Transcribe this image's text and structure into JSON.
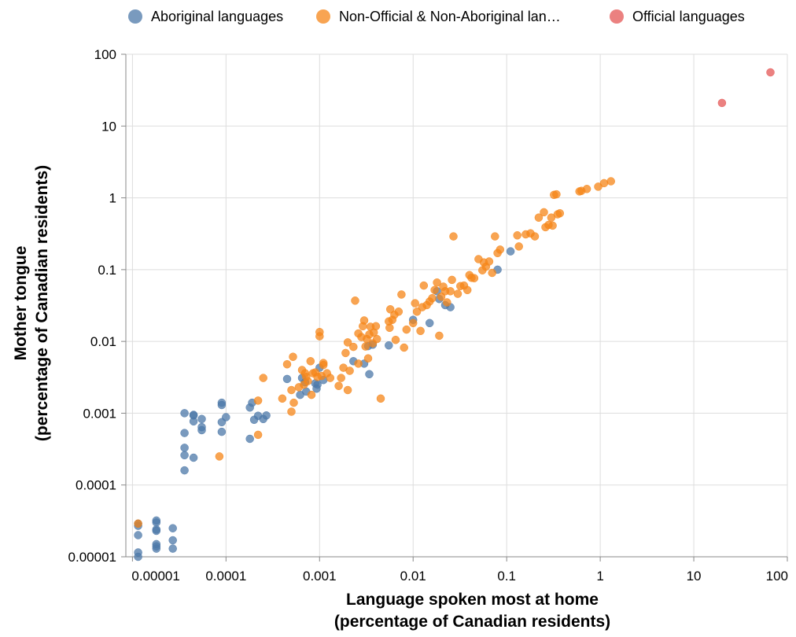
{
  "chart_data": {
    "type": "scatter",
    "xlabel": [
      "Language spoken most at home",
      "(percentage of Canadian residents)"
    ],
    "ylabel": [
      "Mother tongue",
      "(percentage of Canadian residents)"
    ],
    "xscale": "log",
    "yscale": "log",
    "xlim": [
      8.5e-06,
      100
    ],
    "ylim": [
      1e-05,
      100
    ],
    "grid": true,
    "legend_position": "top",
    "x_ticks": [
      {
        "value": 1e-05,
        "label": "0.00001"
      },
      {
        "value": 0.0001,
        "label": "0.0001"
      },
      {
        "value": 0.001,
        "label": "0.001"
      },
      {
        "value": 0.01,
        "label": "0.01"
      },
      {
        "value": 0.1,
        "label": "0.1"
      },
      {
        "value": 1,
        "label": "1"
      },
      {
        "value": 10,
        "label": "10"
      },
      {
        "value": 100,
        "label": "100"
      }
    ],
    "y_ticks": [
      {
        "value": 1e-05,
        "label": "0.00001"
      },
      {
        "value": 0.0001,
        "label": "0.0001"
      },
      {
        "value": 0.001,
        "label": "0.001"
      },
      {
        "value": 0.01,
        "label": "0.01"
      },
      {
        "value": 0.1,
        "label": "0.1"
      },
      {
        "value": 1,
        "label": "1"
      },
      {
        "value": 10,
        "label": "10"
      },
      {
        "value": 100,
        "label": "100"
      }
    ],
    "series": [
      {
        "name": "Aboriginal languages",
        "color": "#4c78a8",
        "points": [
          [
            1.15e-05,
            2.9e-05
          ],
          [
            1.15e-05,
            2.7e-05
          ],
          [
            1.15e-05,
            2e-05
          ],
          [
            1.15e-05,
            1.15e-05
          ],
          [
            1.15e-05,
            1e-05
          ],
          [
            1.8e-05,
            3.2e-05
          ],
          [
            1.8e-05,
            3e-05
          ],
          [
            1.8e-05,
            2.4e-05
          ],
          [
            1.8e-05,
            2.3e-05
          ],
          [
            1.8e-05,
            1.5e-05
          ],
          [
            1.8e-05,
            1.4e-05
          ],
          [
            1.8e-05,
            1.3e-05
          ],
          [
            2.7e-05,
            2.5e-05
          ],
          [
            2.7e-05,
            1.7e-05
          ],
          [
            2.7e-05,
            1.3e-05
          ],
          [
            3.6e-05,
            0.001
          ],
          [
            3.6e-05,
            0.00053
          ],
          [
            3.6e-05,
            0.00033
          ],
          [
            3.6e-05,
            0.00026
          ],
          [
            3.6e-05,
            0.00016
          ],
          [
            4.5e-05,
            0.00095
          ],
          [
            4.5e-05,
            0.00093
          ],
          [
            4.5e-05,
            0.00077
          ],
          [
            4.5e-05,
            0.00024
          ],
          [
            5.5e-05,
            0.00083
          ],
          [
            5.5e-05,
            0.00064
          ],
          [
            5.5e-05,
            0.00058
          ],
          [
            9e-05,
            0.0014
          ],
          [
            9e-05,
            0.0013
          ],
          [
            9e-05,
            0.00075
          ],
          [
            9e-05,
            0.00055
          ],
          [
            0.0001,
            0.00088
          ],
          [
            0.00018,
            0.0012
          ],
          [
            0.00019,
            0.0014
          ],
          [
            0.00018,
            0.00044
          ],
          [
            0.0002,
            0.00081
          ],
          [
            0.00022,
            0.00092
          ],
          [
            0.00025,
            0.00083
          ],
          [
            0.00027,
            0.00093
          ],
          [
            0.00045,
            0.003
          ],
          [
            0.00062,
            0.0018
          ],
          [
            0.00065,
            0.0031
          ],
          [
            0.0007,
            0.0027
          ],
          [
            0.00072,
            0.002
          ],
          [
            0.0009,
            0.0026
          ],
          [
            0.00093,
            0.0022
          ],
          [
            0.00095,
            0.0025
          ],
          [
            0.001,
            0.0043
          ],
          [
            0.0011,
            0.0029
          ],
          [
            0.0023,
            0.0053
          ],
          [
            0.003,
            0.0049
          ],
          [
            0.0033,
            0.0086
          ],
          [
            0.0034,
            0.0035
          ],
          [
            0.0037,
            0.009
          ],
          [
            0.0055,
            0.0088
          ],
          [
            0.01,
            0.02
          ],
          [
            0.015,
            0.018
          ],
          [
            0.018,
            0.05
          ],
          [
            0.019,
            0.039
          ],
          [
            0.022,
            0.032
          ],
          [
            0.025,
            0.03
          ],
          [
            0.08,
            0.1
          ],
          [
            0.11,
            0.18
          ]
        ]
      },
      {
        "name": "Non-Official & Non-Aboriginal lan…",
        "color": "#f58518",
        "points": [
          [
            1.15e-05,
            2.9e-05
          ],
          [
            8.5e-05,
            0.00025
          ],
          [
            0.00022,
            0.0015
          ],
          [
            0.00022,
            0.0005
          ],
          [
            0.00025,
            0.0031
          ],
          [
            0.0004,
            0.0016
          ],
          [
            0.00045,
            0.0048
          ],
          [
            0.0005,
            0.0021
          ],
          [
            0.0005,
            0.00105
          ],
          [
            0.00052,
            0.0061
          ],
          [
            0.00053,
            0.0014
          ],
          [
            0.0006,
            0.0023
          ],
          [
            0.00065,
            0.004
          ],
          [
            0.00068,
            0.0025
          ],
          [
            0.0007,
            0.0036
          ],
          [
            0.00072,
            0.0032
          ],
          [
            0.00075,
            0.0028
          ],
          [
            0.0008,
            0.0053
          ],
          [
            0.00082,
            0.0018
          ],
          [
            0.00085,
            0.0036
          ],
          [
            0.0009,
            0.0037
          ],
          [
            0.00095,
            0.0032
          ],
          [
            0.001,
            0.0135
          ],
          [
            0.001,
            0.0118
          ],
          [
            0.00105,
            0.0033
          ],
          [
            0.0011,
            0.0047
          ],
          [
            0.0011,
            0.005
          ],
          [
            0.0012,
            0.0036
          ],
          [
            0.0013,
            0.0031
          ],
          [
            0.0016,
            0.0024
          ],
          [
            0.0017,
            0.0031
          ],
          [
            0.0018,
            0.0043
          ],
          [
            0.0019,
            0.0069
          ],
          [
            0.002,
            0.0097
          ],
          [
            0.002,
            0.0021
          ],
          [
            0.0021,
            0.0039
          ],
          [
            0.0023,
            0.0084
          ],
          [
            0.0024,
            0.037
          ],
          [
            0.0026,
            0.0129
          ],
          [
            0.0026,
            0.0049
          ],
          [
            0.0028,
            0.0115
          ],
          [
            0.0029,
            0.0163
          ],
          [
            0.003,
            0.0196
          ],
          [
            0.0031,
            0.0085
          ],
          [
            0.0032,
            0.0108
          ],
          [
            0.0033,
            0.0058
          ],
          [
            0.0034,
            0.0125
          ],
          [
            0.0035,
            0.016
          ],
          [
            0.0037,
            0.0094
          ],
          [
            0.0038,
            0.0133
          ],
          [
            0.004,
            0.0163
          ],
          [
            0.0041,
            0.0108
          ],
          [
            0.0045,
            0.0016
          ],
          [
            0.0055,
            0.019
          ],
          [
            0.0056,
            0.0155
          ],
          [
            0.0057,
            0.028
          ],
          [
            0.006,
            0.02
          ],
          [
            0.0063,
            0.0235
          ],
          [
            0.0065,
            0.0105
          ],
          [
            0.007,
            0.026
          ],
          [
            0.0075,
            0.045
          ],
          [
            0.008,
            0.0082
          ],
          [
            0.0085,
            0.0146
          ],
          [
            0.01,
            0.018
          ],
          [
            0.0105,
            0.034
          ],
          [
            0.011,
            0.026
          ],
          [
            0.012,
            0.014
          ],
          [
            0.0125,
            0.03
          ],
          [
            0.013,
            0.06
          ],
          [
            0.014,
            0.032
          ],
          [
            0.015,
            0.036
          ],
          [
            0.016,
            0.04
          ],
          [
            0.017,
            0.052
          ],
          [
            0.018,
            0.066
          ],
          [
            0.019,
            0.012
          ],
          [
            0.02,
            0.042
          ],
          [
            0.021,
            0.058
          ],
          [
            0.022,
            0.05
          ],
          [
            0.023,
            0.035
          ],
          [
            0.025,
            0.05
          ],
          [
            0.026,
            0.072
          ],
          [
            0.027,
            0.29
          ],
          [
            0.03,
            0.046
          ],
          [
            0.032,
            0.059
          ],
          [
            0.035,
            0.06
          ],
          [
            0.038,
            0.052
          ],
          [
            0.04,
            0.084
          ],
          [
            0.042,
            0.077
          ],
          [
            0.045,
            0.076
          ],
          [
            0.05,
            0.14
          ],
          [
            0.055,
            0.098
          ],
          [
            0.057,
            0.126
          ],
          [
            0.06,
            0.11
          ],
          [
            0.065,
            0.13
          ],
          [
            0.07,
            0.09
          ],
          [
            0.075,
            0.29
          ],
          [
            0.08,
            0.17
          ],
          [
            0.085,
            0.19
          ],
          [
            0.13,
            0.3
          ],
          [
            0.135,
            0.21
          ],
          [
            0.16,
            0.31
          ],
          [
            0.18,
            0.32
          ],
          [
            0.2,
            0.29
          ],
          [
            0.22,
            0.53
          ],
          [
            0.25,
            0.63
          ],
          [
            0.26,
            0.39
          ],
          [
            0.28,
            0.42
          ],
          [
            0.3,
            0.53
          ],
          [
            0.31,
            0.41
          ],
          [
            0.32,
            1.1
          ],
          [
            0.34,
            1.12
          ],
          [
            0.35,
            0.59
          ],
          [
            0.37,
            0.61
          ],
          [
            0.6,
            1.23
          ],
          [
            0.63,
            1.25
          ],
          [
            0.72,
            1.33
          ],
          [
            0.95,
            1.43
          ],
          [
            1.1,
            1.6
          ],
          [
            1.3,
            1.7
          ]
        ]
      },
      {
        "name": "Official languages",
        "color": "#e45756",
        "points": [
          [
            20,
            21
          ],
          [
            66,
            56
          ]
        ]
      }
    ]
  }
}
